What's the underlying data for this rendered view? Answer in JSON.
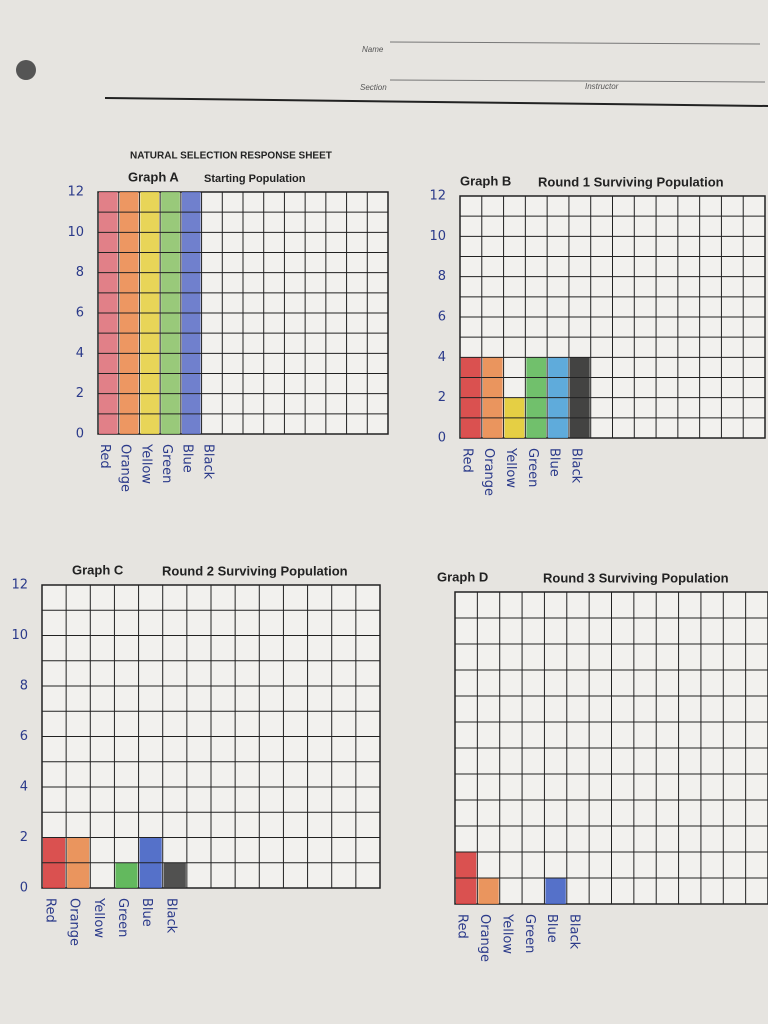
{
  "header": {
    "name_label": "Name",
    "section_label": "Section",
    "instructor_label": "Instructor",
    "title": "NATURAL SELECTION RESPONSE SHEET"
  },
  "chart_data": [
    {
      "type": "bar",
      "title": "Graph A",
      "subtitle": "Starting Population",
      "categories": [
        "Red",
        "Orange",
        "Yellow",
        "Green",
        "Blue",
        "Black"
      ],
      "values": [
        12,
        12,
        12,
        12,
        12,
        0
      ],
      "colors": [
        "#de6f7a",
        "#ec8a4e",
        "#e6d043",
        "#8cc36a",
        "#5d6fc8",
        "#333333"
      ],
      "ylim": [
        0,
        12
      ],
      "yticks": [
        0,
        2,
        4,
        6,
        8,
        10,
        12
      ]
    },
    {
      "type": "bar",
      "title": "Graph B",
      "subtitle": "Round 1 Surviving Population",
      "categories": [
        "Red",
        "Orange",
        "Yellow",
        "Green",
        "Blue",
        "Black"
      ],
      "values": [
        4,
        4,
        2,
        4,
        4,
        4
      ],
      "colors": [
        "#d63a3a",
        "#e8874a",
        "#e3c92c",
        "#5fb85a",
        "#4aa0d8",
        "#2a2a2a"
      ],
      "ylim": [
        0,
        12
      ],
      "yticks": [
        0,
        2,
        4,
        6,
        8,
        10,
        12
      ]
    },
    {
      "type": "bar",
      "title": "Graph C",
      "subtitle": "Round 2 Surviving Population",
      "categories": [
        "Red",
        "Orange",
        "Yellow",
        "Green",
        "Blue",
        "Black"
      ],
      "values": [
        2,
        2,
        0,
        1,
        2,
        1
      ],
      "colors": [
        "#d63a3a",
        "#e8874a",
        "#e3c92c",
        "#4fb14a",
        "#3f5fc4",
        "#3a3a3a"
      ],
      "ylim": [
        0,
        12
      ],
      "yticks": [
        0,
        2,
        4,
        6,
        8,
        10,
        12
      ]
    },
    {
      "type": "bar",
      "title": "Graph D",
      "subtitle": "Round 3 Surviving Population",
      "categories": [
        "Red",
        "Orange",
        "Yellow",
        "Green",
        "Blue",
        "Black"
      ],
      "values": [
        2,
        1,
        0,
        0,
        1,
        0
      ],
      "colors": [
        "#d63a3a",
        "#e8874a",
        "#e3c92c",
        "#4fb14a",
        "#3f5fc4",
        "#3a3a3a"
      ],
      "ylim": [
        0,
        12
      ]
    }
  ]
}
